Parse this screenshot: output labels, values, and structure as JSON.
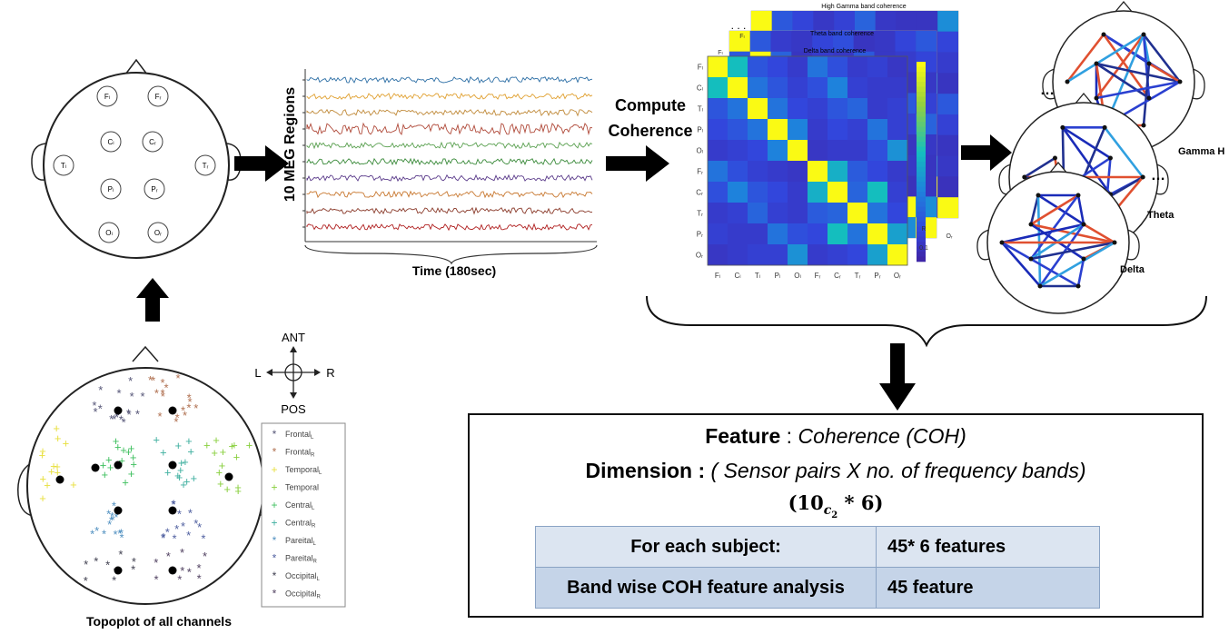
{
  "head_regions": [
    "Fₗ",
    "Fᵣ",
    "Cₗ",
    "Cᵣ",
    "Tₗ",
    "Tᵣ",
    "Pₗ",
    "Pᵣ",
    "Oₗ",
    "Oᵣ"
  ],
  "meg": {
    "ylabel": "10 MEG Regions",
    "xlabel": "Time (180sec)",
    "trace_colors": [
      "#2c6ea5",
      "#e0a030",
      "#c08a3a",
      "#b04a3a",
      "#5aa050",
      "#3a8a3a",
      "#5a3a8a",
      "#c87830",
      "#8a3a2a",
      "#b02020"
    ]
  },
  "compute_label": [
    "Compute",
    "Coherence"
  ],
  "coherence": {
    "bands": [
      "High Gamma band coherence",
      "Theta band coherence",
      "Delta band coherence"
    ],
    "row_labels": [
      "Fₗ",
      "Cₗ",
      "Tₗ",
      "Pₗ",
      "Oₗ",
      "Fᵣ",
      "Cᵣ",
      "Tᵣ",
      "Pᵣ",
      "Oᵣ"
    ],
    "col_labels": [
      "Fₗ",
      "Cₗ",
      "Tₗ",
      "Pₗ",
      "Oₗ",
      "Fᵣ",
      "Cᵣ",
      "Tᵣ",
      "Pᵣ",
      "Oᵣ"
    ],
    "back_labels": [
      "Fₗ",
      "Fₗ",
      "Oᵣ",
      "R",
      "0.1"
    ],
    "matrix": [
      [
        1.0,
        0.55,
        0.2,
        0.15,
        0.1,
        0.3,
        0.18,
        0.1,
        0.12,
        0.08
      ],
      [
        0.55,
        1.0,
        0.3,
        0.2,
        0.12,
        0.18,
        0.35,
        0.12,
        0.1,
        0.1
      ],
      [
        0.2,
        0.3,
        1.0,
        0.3,
        0.15,
        0.12,
        0.2,
        0.25,
        0.1,
        0.12
      ],
      [
        0.15,
        0.2,
        0.3,
        1.0,
        0.35,
        0.1,
        0.15,
        0.12,
        0.3,
        0.12
      ],
      [
        0.1,
        0.12,
        0.15,
        0.35,
        1.0,
        0.08,
        0.1,
        0.1,
        0.18,
        0.4
      ],
      [
        0.3,
        0.18,
        0.12,
        0.1,
        0.08,
        1.0,
        0.5,
        0.22,
        0.15,
        0.1
      ],
      [
        0.18,
        0.35,
        0.2,
        0.15,
        0.1,
        0.5,
        1.0,
        0.25,
        0.55,
        0.12
      ],
      [
        0.1,
        0.12,
        0.25,
        0.12,
        0.1,
        0.22,
        0.25,
        1.0,
        0.3,
        0.15
      ],
      [
        0.12,
        0.1,
        0.1,
        0.3,
        0.18,
        0.15,
        0.55,
        0.3,
        1.0,
        0.45
      ],
      [
        0.08,
        0.1,
        0.12,
        0.12,
        0.4,
        0.1,
        0.12,
        0.15,
        0.45,
        1.0
      ]
    ]
  },
  "networks": {
    "labels": [
      "Gamma H",
      "Theta",
      "Delta"
    ],
    "dots": [
      "…",
      "…"
    ]
  },
  "topoplot": {
    "caption": "Topoplot of all channels",
    "compass": {
      "ant": "ANT",
      "pos": "POS",
      "left": "L",
      "right": "R"
    },
    "legend": [
      {
        "label": "Frontal",
        "sub": "L",
        "color": "#555577",
        "sym": "*"
      },
      {
        "label": "Frontal",
        "sub": "R",
        "color": "#b07050",
        "sym": "*"
      },
      {
        "label": "Temporal",
        "sub": "L",
        "color": "#e8e040",
        "sym": "+"
      },
      {
        "label": "Temporal",
        "sub": "",
        "color": "#8ad040",
        "sym": "+"
      },
      {
        "label": "Central",
        "sub": "L",
        "color": "#40c060",
        "sym": "+"
      },
      {
        "label": "Central",
        "sub": "R",
        "color": "#40b0a0",
        "sym": "+"
      },
      {
        "label": "Pareital",
        "sub": "L",
        "color": "#5090c0",
        "sym": "*"
      },
      {
        "label": "Pareital",
        "sub": "R",
        "color": "#5060a0",
        "sym": "*"
      },
      {
        "label": "Occipital",
        "sub": "L",
        "color": "#404050",
        "sym": "*"
      },
      {
        "label": "Occipital",
        "sub": "R",
        "color": "#504060",
        "sym": "*"
      }
    ]
  },
  "feature": {
    "line1_bold": "Feature",
    "line1_sep": " :  ",
    "line1_value": "Coherence (COH)",
    "line2_bold": "Dimension :",
    "line2_value": "( Sensor pairs X no. of frequency bands)",
    "formula_open": "(10",
    "formula_sub": "c",
    "formula_subsub": "2",
    "formula_rest": " * 6)",
    "table": [
      [
        "For each subject:",
        "45* 6 features"
      ],
      [
        "Band wise COH feature analysis",
        "45 feature"
      ]
    ]
  }
}
